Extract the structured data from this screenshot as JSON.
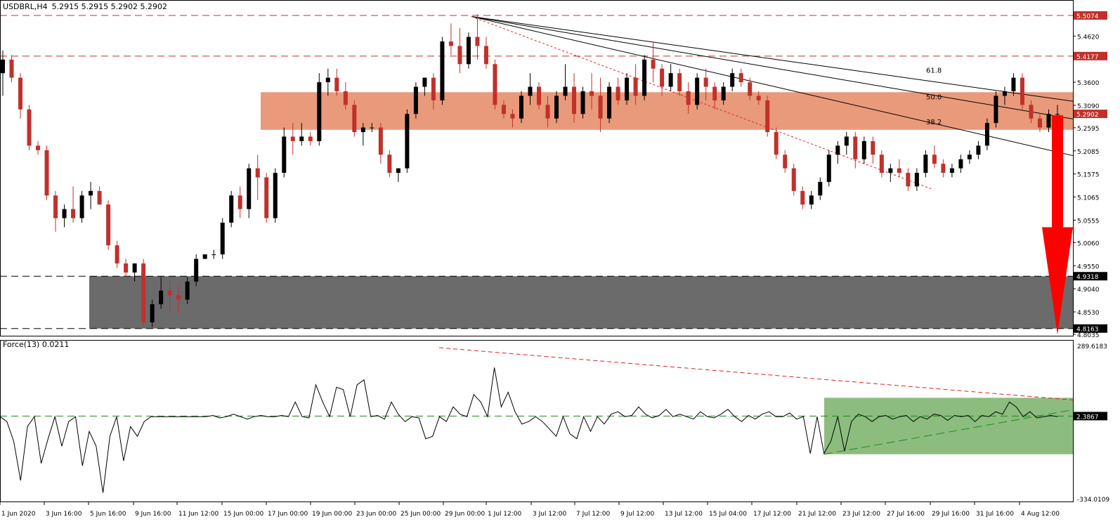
{
  "window": {
    "symbol_title": "USDBRL,H4",
    "ohlc": "5.2915 5.2915 5.2902 5.2902"
  },
  "colors": {
    "bull": "#000000",
    "bear": "#c0312b",
    "resistance_zone": "#e99a7b",
    "support_zone": "#6b6b6b",
    "indicator_zone": "#8cbd7e",
    "level_line": "#c0312b",
    "fib_line": "#000000",
    "trend_red": "#e02020",
    "trend_green": "#1a8a1a",
    "arrow": "#ff0000",
    "label_red_bg": "#c0312b",
    "label_black_bg": "#000000"
  },
  "chart_data": [
    {
      "type": "candlestick",
      "title": "USDBRL,H4",
      "ylim": [
        4.8035,
        5.5074
      ],
      "y_ticks": [
        "5.4620",
        "5.3600",
        "5.3090",
        "5.2595",
        "5.2085",
        "5.1575",
        "5.1065",
        "5.0555",
        "5.0060",
        "4.9550",
        "4.9040",
        "4.8530",
        "4.8035"
      ],
      "x_ticks": [
        "1 Jun 2020",
        "3 Jun 16:00",
        "5 Jun 16:00",
        "9 Jun 16:00",
        "11 Jun 12:00",
        "15 Jun 00:00",
        "17 Jun 00:00",
        "19 Jun 00:00",
        "23 Jun 00:00",
        "25 Jun 00:00",
        "29 Jun 00:00",
        "1 Jul 12:00",
        "3 Jul 12:00",
        "7 Jul 12:00",
        "9 Jul 12:00",
        "13 Jul 12:00",
        "15 Jul 04:00",
        "17 Jul 12:00",
        "21 Jul 12:00",
        "23 Jul 12:00",
        "27 Jul 16:00",
        "29 Jul 16:00",
        "31 Jul 16:00",
        "4 Aug 12:00"
      ],
      "levels": [
        {
          "value": 5.5074,
          "label": "5.5074",
          "style": "red-dashed"
        },
        {
          "value": 5.4177,
          "label": "5.4177",
          "style": "red-dashed"
        },
        {
          "value": 5.2902,
          "label": "5.2902",
          "style": "current"
        },
        {
          "value": 4.9318,
          "label": "4.9318",
          "style": "black-dashed"
        },
        {
          "value": 4.8163,
          "label": "4.8163",
          "style": "black-dashed"
        }
      ],
      "zones": [
        {
          "name": "resistance",
          "from": 5.255,
          "to": 5.338
        },
        {
          "name": "support",
          "from": 4.8163,
          "to": 4.9318
        }
      ],
      "fib_labels": [
        "61.8",
        "50.0",
        "38.2"
      ],
      "candle_points": [
        [
          5.38,
          5.43,
          5.33,
          5.41
        ],
        [
          5.41,
          5.42,
          5.36,
          5.37
        ],
        [
          5.37,
          5.38,
          5.28,
          5.3
        ],
        [
          5.3,
          5.31,
          5.21,
          5.22
        ],
        [
          5.22,
          5.23,
          5.2,
          5.21
        ],
        [
          5.21,
          5.22,
          5.1,
          5.11
        ],
        [
          5.11,
          5.12,
          5.03,
          5.06
        ],
        [
          5.06,
          5.09,
          5.04,
          5.08
        ],
        [
          5.08,
          5.13,
          5.05,
          5.06
        ],
        [
          5.06,
          5.12,
          5.05,
          5.11
        ],
        [
          5.11,
          5.14,
          5.08,
          5.12
        ],
        [
          5.12,
          5.13,
          5.09,
          5.09
        ],
        [
          5.09,
          5.1,
          4.99,
          5.0
        ],
        [
          5.0,
          5.01,
          4.95,
          4.96
        ],
        [
          4.96,
          4.97,
          4.93,
          4.94
        ],
        [
          4.94,
          4.96,
          4.92,
          4.96
        ],
        [
          4.96,
          4.97,
          4.82,
          4.83
        ],
        [
          4.83,
          4.88,
          4.82,
          4.87
        ],
        [
          4.87,
          4.93,
          4.86,
          4.9
        ],
        [
          4.9,
          4.92,
          4.85,
          4.89
        ],
        [
          4.89,
          4.91,
          4.85,
          4.88
        ],
        [
          4.88,
          4.93,
          4.87,
          4.92
        ],
        [
          4.92,
          4.98,
          4.91,
          4.97
        ],
        [
          4.97,
          4.98,
          4.97,
          4.98
        ],
        [
          4.98,
          4.99,
          4.97,
          4.98
        ],
        [
          4.98,
          5.06,
          4.97,
          5.05
        ],
        [
          5.05,
          5.12,
          5.04,
          5.11
        ],
        [
          5.11,
          5.13,
          5.06,
          5.08
        ],
        [
          5.08,
          5.18,
          5.06,
          5.17
        ],
        [
          5.17,
          5.2,
          5.1,
          5.15
        ],
        [
          5.15,
          5.16,
          5.05,
          5.06
        ],
        [
          5.06,
          5.17,
          5.05,
          5.16
        ],
        [
          5.16,
          5.26,
          5.15,
          5.24
        ],
        [
          5.24,
          5.27,
          5.2,
          5.23
        ],
        [
          5.23,
          5.27,
          5.22,
          5.24
        ],
        [
          5.24,
          5.25,
          5.22,
          5.23
        ],
        [
          5.23,
          5.38,
          5.22,
          5.36
        ],
        [
          5.36,
          5.39,
          5.33,
          5.37
        ],
        [
          5.37,
          5.39,
          5.33,
          5.34
        ],
        [
          5.34,
          5.36,
          5.3,
          5.31
        ],
        [
          5.31,
          5.32,
          5.24,
          5.25
        ],
        [
          5.25,
          5.27,
          5.22,
          5.26
        ],
        [
          5.26,
          5.27,
          5.25,
          5.26
        ],
        [
          5.26,
          5.27,
          5.18,
          5.2
        ],
        [
          5.2,
          5.21,
          5.15,
          5.16
        ],
        [
          5.16,
          5.17,
          5.14,
          5.17
        ],
        [
          5.17,
          5.3,
          5.16,
          5.29
        ],
        [
          5.29,
          5.36,
          5.28,
          5.35
        ],
        [
          5.35,
          5.37,
          5.33,
          5.37
        ],
        [
          5.37,
          5.38,
          5.3,
          5.32
        ],
        [
          5.32,
          5.46,
          5.31,
          5.45
        ],
        [
          5.45,
          5.49,
          5.42,
          5.44
        ],
        [
          5.44,
          5.48,
          5.38,
          5.4
        ],
        [
          5.4,
          5.47,
          5.39,
          5.46
        ],
        [
          5.46,
          5.51,
          5.41,
          5.44
        ],
        [
          5.44,
          5.46,
          5.39,
          5.4
        ],
        [
          5.4,
          5.41,
          5.3,
          5.31
        ],
        [
          5.31,
          5.32,
          5.28,
          5.29
        ],
        [
          5.29,
          5.3,
          5.26,
          5.28
        ],
        [
          5.28,
          5.34,
          5.27,
          5.33
        ],
        [
          5.33,
          5.38,
          5.31,
          5.35
        ],
        [
          5.35,
          5.36,
          5.3,
          5.31
        ],
        [
          5.31,
          5.33,
          5.26,
          5.28
        ],
        [
          5.28,
          5.34,
          5.27,
          5.33
        ],
        [
          5.33,
          5.4,
          5.32,
          5.35
        ],
        [
          5.35,
          5.38,
          5.27,
          5.29
        ],
        [
          5.29,
          5.35,
          5.28,
          5.34
        ],
        [
          5.34,
          5.38,
          5.3,
          5.33
        ],
        [
          5.33,
          5.37,
          5.25,
          5.28
        ],
        [
          5.28,
          5.36,
          5.27,
          5.35
        ],
        [
          5.35,
          5.37,
          5.31,
          5.32
        ],
        [
          5.32,
          5.38,
          5.31,
          5.37
        ],
        [
          5.37,
          5.4,
          5.31,
          5.33
        ],
        [
          5.33,
          5.42,
          5.32,
          5.41
        ],
        [
          5.41,
          5.45,
          5.36,
          5.39
        ],
        [
          5.39,
          5.4,
          5.33,
          5.35
        ],
        [
          5.35,
          5.4,
          5.34,
          5.38
        ],
        [
          5.38,
          5.39,
          5.33,
          5.34
        ],
        [
          5.34,
          5.36,
          5.29,
          5.31
        ],
        [
          5.31,
          5.38,
          5.3,
          5.37
        ],
        [
          5.37,
          5.39,
          5.32,
          5.35
        ],
        [
          5.35,
          5.36,
          5.3,
          5.32
        ],
        [
          5.32,
          5.36,
          5.31,
          5.35
        ],
        [
          5.35,
          5.39,
          5.34,
          5.38
        ],
        [
          5.38,
          5.39,
          5.35,
          5.36
        ],
        [
          5.36,
          5.37,
          5.32,
          5.33
        ],
        [
          5.33,
          5.34,
          5.31,
          5.32
        ],
        [
          5.32,
          5.33,
          5.24,
          5.25
        ],
        [
          5.25,
          5.26,
          5.19,
          5.2
        ],
        [
          5.2,
          5.21,
          5.16,
          5.17
        ],
        [
          5.17,
          5.18,
          5.11,
          5.12
        ],
        [
          5.12,
          5.13,
          5.08,
          5.09
        ],
        [
          5.09,
          5.12,
          5.08,
          5.11
        ],
        [
          5.11,
          5.15,
          5.1,
          5.14
        ],
        [
          5.14,
          5.21,
          5.13,
          5.2
        ],
        [
          5.2,
          5.23,
          5.18,
          5.22
        ],
        [
          5.22,
          5.25,
          5.2,
          5.24
        ],
        [
          5.24,
          5.25,
          5.17,
          5.19
        ],
        [
          5.19,
          5.24,
          5.18,
          5.23
        ],
        [
          5.23,
          5.24,
          5.18,
          5.2
        ],
        [
          5.2,
          5.21,
          5.15,
          5.16
        ],
        [
          5.16,
          5.18,
          5.14,
          5.17
        ],
        [
          5.17,
          5.19,
          5.15,
          5.16
        ],
        [
          5.16,
          5.17,
          5.12,
          5.13
        ],
        [
          5.13,
          5.17,
          5.12,
          5.16
        ],
        [
          5.16,
          5.21,
          5.15,
          5.2
        ],
        [
          5.2,
          5.22,
          5.17,
          5.18
        ],
        [
          5.18,
          5.19,
          5.15,
          5.16
        ],
        [
          5.16,
          5.18,
          5.15,
          5.17
        ],
        [
          5.17,
          5.2,
          5.16,
          5.19
        ],
        [
          5.19,
          5.21,
          5.18,
          5.2
        ],
        [
          5.2,
          5.23,
          5.19,
          5.22
        ],
        [
          5.22,
          5.28,
          5.21,
          5.27
        ],
        [
          5.27,
          5.34,
          5.26,
          5.33
        ],
        [
          5.33,
          5.35,
          5.31,
          5.34
        ],
        [
          5.34,
          5.38,
          5.33,
          5.37
        ],
        [
          5.37,
          5.38,
          5.3,
          5.31
        ],
        [
          5.31,
          5.32,
          5.27,
          5.28
        ],
        [
          5.28,
          5.29,
          5.25,
          5.26
        ],
        [
          5.26,
          5.3,
          5.25,
          5.29
        ],
        [
          5.29,
          5.31,
          5.28,
          5.29
        ]
      ]
    },
    {
      "type": "line",
      "title": "Force(13) 0.0211",
      "ylim": [
        -334.0109,
        289.6183
      ],
      "y_ticks": [
        "289.6183",
        "2.3867",
        "-334.0109"
      ],
      "levels": [
        {
          "value": 2.3867,
          "label": "2.3867",
          "style": "green-dashed"
        }
      ],
      "zones": [
        {
          "name": "indicator-zone",
          "from": -153,
          "to": 77
        }
      ],
      "series": [
        {
          "values": [
            0,
            -20,
            -100,
            -260,
            -40,
            0,
            -190,
            -90,
            0,
            -120,
            -20,
            0,
            -200,
            -60,
            -120,
            -310,
            -80,
            0,
            -180,
            -40,
            -80,
            -20,
            0,
            0,
            0,
            0,
            0,
            0,
            0,
            0,
            0,
            5,
            -5,
            0,
            10,
            0,
            -10,
            0,
            5,
            0,
            0,
            5,
            0,
            60,
            0,
            -5,
            130,
            60,
            0,
            120,
            110,
            0,
            130,
            150,
            0,
            5,
            -10,
            60,
            10,
            -20,
            0,
            -5,
            -90,
            -80,
            0,
            -20,
            40,
            10,
            0,
            90,
            60,
            0,
            200,
            40,
            100,
            20,
            -30,
            -20,
            0,
            -20,
            -50,
            -80,
            0,
            -70,
            -90,
            0,
            -60,
            0,
            -30,
            10,
            20,
            0,
            5,
            40,
            10,
            -5,
            5,
            30,
            0,
            10,
            0,
            -10,
            20,
            0,
            -5,
            10,
            30,
            0,
            -20,
            5,
            -10,
            10,
            20,
            0,
            0,
            15,
            -10,
            0,
            -150,
            0,
            -150,
            -100,
            0,
            -140,
            -20,
            10,
            0,
            -20,
            0,
            5,
            -10,
            0,
            5,
            -20,
            0,
            -10,
            10,
            5,
            -15,
            5,
            0,
            5,
            -20,
            5,
            0,
            20,
            10,
            60,
            40,
            0,
            20,
            -5,
            0,
            5,
            0
          ]
        }
      ]
    }
  ]
}
